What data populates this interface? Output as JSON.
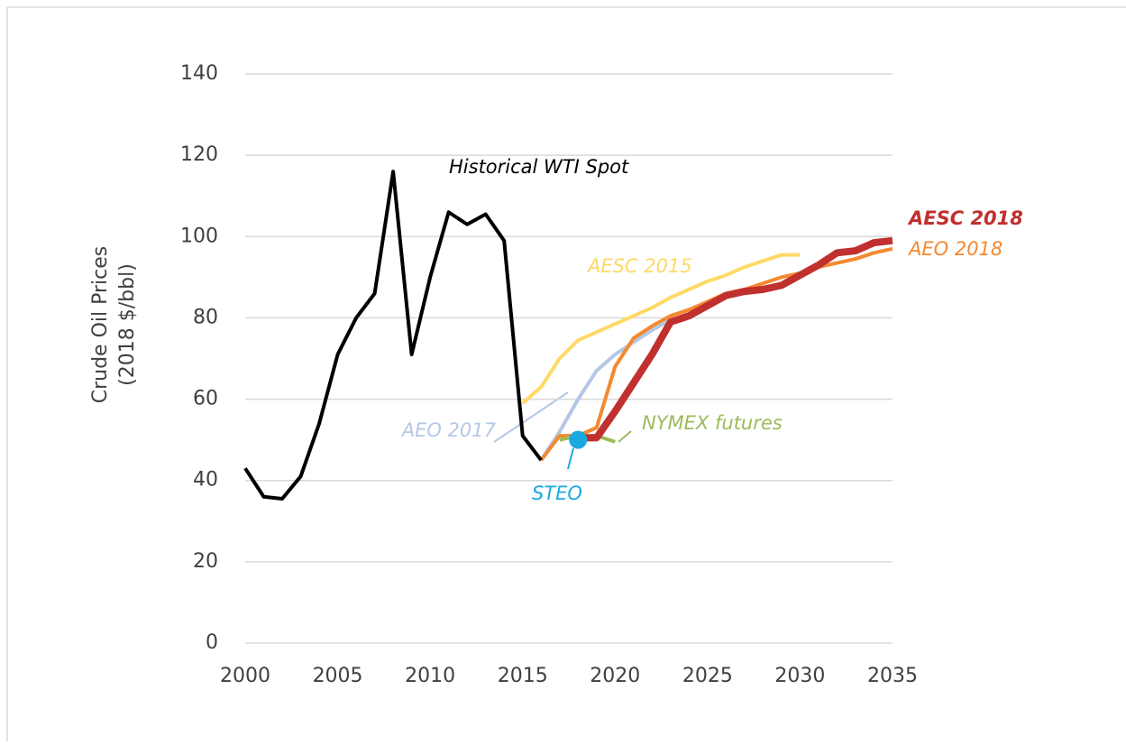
{
  "chart_data": {
    "type": "line",
    "y_label": [
      "Crude Oil Prices",
      "(2018 $/bbl)"
    ],
    "xlim": [
      2000,
      2035
    ],
    "xticks": [
      2000,
      2005,
      2010,
      2015,
      2020,
      2025,
      2030,
      2035
    ],
    "ylim": [
      0,
      140
    ],
    "yticks": [
      0,
      20,
      40,
      60,
      80,
      100,
      120,
      140
    ],
    "grid": true,
    "series": [
      {
        "name": "AESC 2015",
        "color": "#ffd966",
        "x": [
          2015,
          2016,
          2017,
          2018,
          2019,
          2020,
          2021,
          2022,
          2023,
          2024,
          2025,
          2026,
          2027,
          2028,
          2029,
          2030
        ],
        "values": [
          59,
          63,
          70,
          74.5,
          76.5,
          78.5,
          80.5,
          82.5,
          85,
          87,
          89,
          90.5,
          92.5,
          94,
          95.5,
          95.5
        ]
      },
      {
        "name": "AEO 2017",
        "color": "#b4c7e7",
        "x": [
          2016,
          2017,
          2018,
          2019,
          2020,
          2021,
          2022,
          2023
        ],
        "values": [
          45,
          52,
          60,
          67,
          71,
          74,
          77,
          79.5
        ]
      },
      {
        "name": "AEO 2018",
        "color": "#f4892f",
        "x": [
          2016,
          2017,
          2018,
          2019,
          2020,
          2021,
          2022,
          2023,
          2024,
          2025,
          2026,
          2027,
          2028,
          2029,
          2030,
          2031,
          2032,
          2033,
          2034,
          2035
        ],
        "values": [
          45,
          51,
          51,
          53,
          68,
          75,
          78,
          80.5,
          82,
          84,
          86,
          87,
          88.5,
          90,
          91,
          92.5,
          93.5,
          94.5,
          96,
          97
        ]
      },
      {
        "name": "NYMEX futures",
        "color": "#9bbb59",
        "x": [
          2017,
          2018,
          2019,
          2020
        ],
        "values": [
          50,
          51,
          51,
          49.5
        ]
      },
      {
        "name": "AESC 2018",
        "color": "#c0302e",
        "x": [
          2018,
          2019,
          2020,
          2021,
          2022,
          2023,
          2024,
          2025,
          2026,
          2027,
          2028,
          2029,
          2030,
          2031,
          2032,
          2033,
          2034,
          2035
        ],
        "values": [
          50.5,
          50.5,
          57,
          64,
          71,
          79,
          80.5,
          83,
          85.5,
          86.5,
          87,
          88,
          90.5,
          93,
          96,
          96.5,
          98.5,
          99
        ]
      },
      {
        "name": "Historical WTI Spot",
        "color": "#000000",
        "x": [
          2000,
          2001,
          2002,
          2003,
          2004,
          2005,
          2006,
          2007,
          2008,
          2009,
          2010,
          2011,
          2012,
          2013,
          2014,
          2015,
          2016
        ],
        "values": [
          43,
          36,
          35.5,
          41,
          54,
          71,
          80,
          86,
          116,
          71,
          90,
          106,
          103,
          105.5,
          99,
          51,
          45
        ]
      },
      {
        "name": "STEO",
        "color": "#1ba9e0",
        "x": [
          2018
        ],
        "values": [
          50
        ]
      }
    ]
  }
}
